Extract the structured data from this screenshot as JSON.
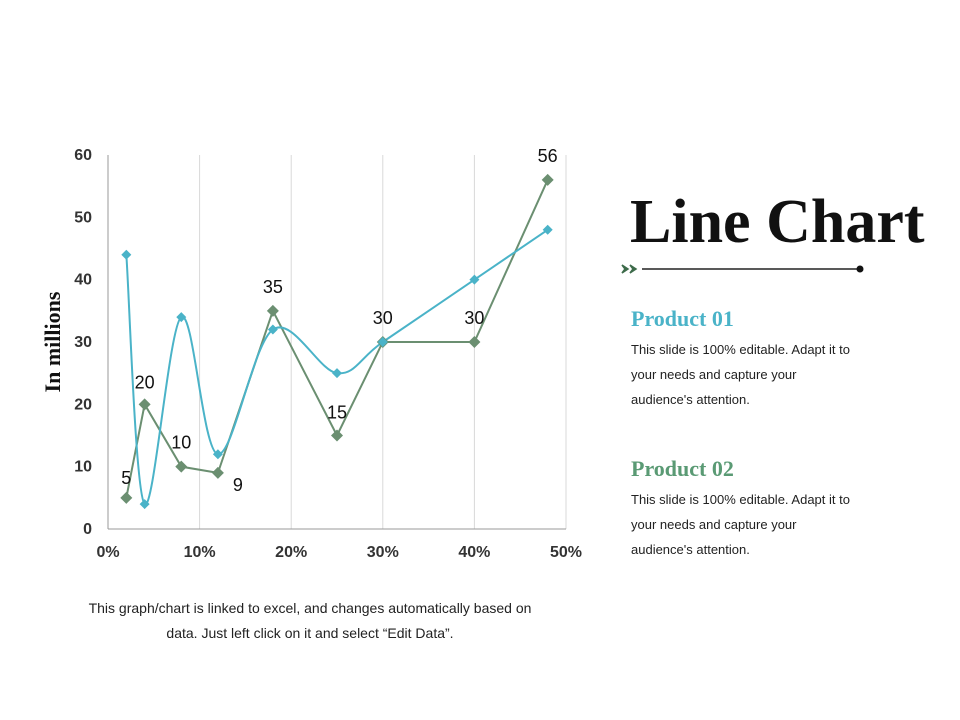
{
  "colors": {
    "series1": "#4ab3c8",
    "series2": "#6b8f71",
    "product1_title": "#4ab3c8",
    "product2_title": "#5a9a74",
    "arrow": "#3d6b4a"
  },
  "slide": {
    "title": "Line Chart",
    "caption_line1": "This graph/chart is linked to excel, and changes automatically based on",
    "caption_line2": "data. Just left click on it and select “Edit Data”."
  },
  "products": [
    {
      "title": "Product 01",
      "desc_line1": "This slide is 100% editable. Adapt it to",
      "desc_line2": "your needs and capture your",
      "desc_line3": "audience's attention."
    },
    {
      "title": "Product 02",
      "desc_line1": "This slide is 100% editable. Adapt it to",
      "desc_line2": "your needs and capture your",
      "desc_line3": "audience's attention."
    }
  ],
  "chart_data": {
    "type": "line",
    "title": "",
    "xlabel": "",
    "ylabel": "In millions",
    "xlim": [
      0,
      0.5
    ],
    "ylim": [
      0,
      60
    ],
    "x_ticks": [
      "0%",
      "10%",
      "20%",
      "30%",
      "40%",
      "50%"
    ],
    "y_ticks": [
      "0",
      "10",
      "20",
      "30",
      "40",
      "50",
      "60"
    ],
    "vertical_grid": true,
    "series": [
      {
        "name": "Product 01",
        "smooth": true,
        "x": [
          0.02,
          0.04,
          0.08,
          0.12,
          0.18,
          0.25,
          0.3,
          0.4,
          0.48
        ],
        "values": [
          44,
          4,
          34,
          12,
          32,
          25,
          30,
          40,
          48
        ],
        "labels": [
          "",
          "",
          "",
          "",
          "",
          "",
          "",
          "",
          ""
        ]
      },
      {
        "name": "Product 02",
        "smooth": false,
        "x": [
          0.02,
          0.04,
          0.08,
          0.12,
          0.18,
          0.25,
          0.3,
          0.4,
          0.48
        ],
        "values": [
          5,
          20,
          10,
          9,
          35,
          15,
          30,
          30,
          56
        ],
        "labels": [
          "5",
          "20",
          "10",
          "9",
          "35",
          "15",
          "30",
          "30",
          "56"
        ]
      }
    ]
  }
}
